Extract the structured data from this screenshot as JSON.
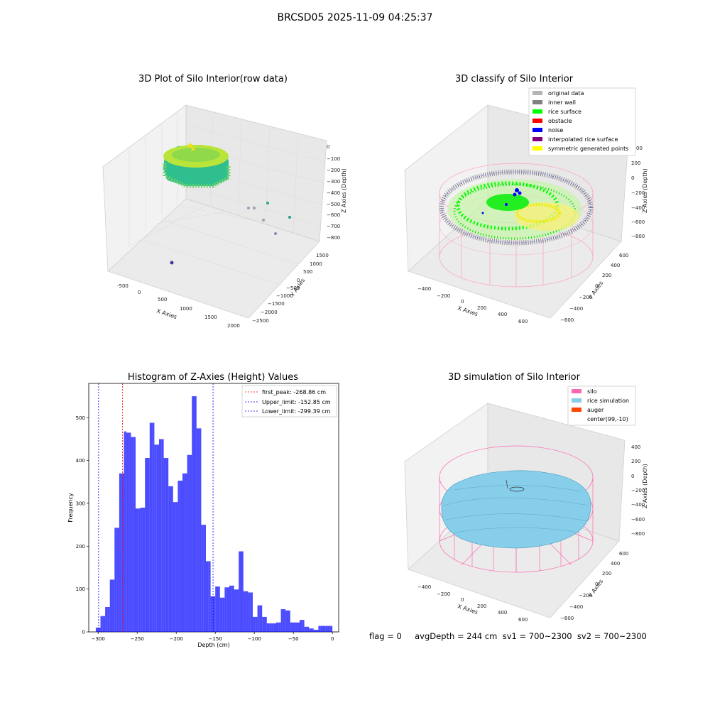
{
  "figure_title": "BRCSD05 2025-11-09 04:25:37",
  "status": {
    "line": "flag = 0     avgDepth = 244 cm  sv1 = 700~2300  sv2 = 700~2300"
  },
  "chart_data": [
    {
      "id": "raw",
      "type": "scatter3d",
      "title": "3D Plot of Silo Interior(row data)",
      "xlabel": "X Axies",
      "ylabel": "Y Axies",
      "zlabel": "Z Axies (Depth)",
      "x_ticks": [
        "-500",
        "0",
        "500",
        "1000",
        "1500",
        "2000"
      ],
      "y_ticks": [
        "1500",
        "1000",
        "500",
        "0",
        "−500",
        "−1000",
        "−1500",
        "−2000",
        "−2500"
      ],
      "z_ticks": [
        "0",
        "−100",
        "−200",
        "−300",
        "−400",
        "−500",
        "−600",
        "−700",
        "−800"
      ]
    },
    {
      "id": "classify",
      "type": "scatter3d",
      "title": "3D classify of Silo Interior",
      "xlabel": "X Axies",
      "ylabel": "Y Axies",
      "zlabel": "Z Axies (Depth)",
      "x_ticks": [
        "−400",
        "−200",
        "0",
        "200",
        "400",
        "600"
      ],
      "y_ticks": [
        "600",
        "400",
        "200",
        "0",
        "−200",
        "−400",
        "−600"
      ],
      "z_ticks": [
        "200",
        "0",
        "−200",
        "−400",
        "−600",
        "−800"
      ],
      "z_ticks_partial": [
        "00"
      ],
      "legend": [
        {
          "label": "original data",
          "color": "#b4b4b4"
        },
        {
          "label": "inner wall",
          "color": "#808080"
        },
        {
          "label": "rice surface",
          "color": "#00ff00"
        },
        {
          "label": "obstacle",
          "color": "#ff0000"
        },
        {
          "label": "noise",
          "color": "#0000ff"
        },
        {
          "label": "interpolated rice surface",
          "color": "#800080"
        },
        {
          "label": "symmetric generated points",
          "color": "#ffff00"
        }
      ]
    },
    {
      "id": "histogram",
      "type": "bar",
      "title": "Histogram of Z-Axies (Height) Values",
      "xlabel": "Depth (cm)",
      "ylabel": "Frequency",
      "xlim": [
        -312,
        8
      ],
      "ylim": [
        0,
        580
      ],
      "x_ticks": [
        -300,
        -250,
        -200,
        -150,
        -100,
        -50,
        0
      ],
      "y_ticks": [
        0,
        100,
        200,
        300,
        400,
        500
      ],
      "bin_width": 3,
      "bin_starts": [
        -303,
        -300,
        -297,
        -294,
        -291,
        -288,
        -285,
        -282,
        -279,
        -276,
        -273,
        -270,
        -267,
        -264,
        -261,
        -258,
        -255,
        -252,
        -249,
        -246,
        -243,
        -240,
        -237,
        -234,
        -231,
        -228,
        -225,
        -222,
        -219,
        -216,
        -213,
        -210,
        -207,
        -204,
        -201,
        -198,
        -195,
        -192,
        -189,
        -186,
        -183,
        -180,
        -177,
        -174,
        -171,
        -168,
        -165,
        -162,
        -159,
        -156,
        -153,
        -150,
        -147,
        -144,
        -141,
        -138,
        -135,
        -132,
        -129,
        -126,
        -123,
        -120,
        -117,
        -114,
        -111,
        -108,
        -105,
        -102,
        -99,
        -96,
        -93,
        -90,
        -87,
        -84,
        -81,
        -78,
        -75,
        -72,
        -69,
        -66,
        -63,
        -60,
        -57,
        -54,
        -51,
        -48,
        -45,
        -42,
        -39,
        -36,
        -33,
        -30,
        -27,
        -24,
        -21,
        -18,
        -15,
        -12,
        -9,
        -6,
        -3
      ],
      "values": [
        10,
        10,
        37,
        37,
        58,
        58,
        122,
        122,
        243,
        243,
        370,
        370,
        468,
        465,
        465,
        455,
        455,
        288,
        288,
        290,
        290,
        406,
        406,
        488,
        488,
        437,
        437,
        450,
        450,
        406,
        406,
        340,
        340,
        303,
        303,
        353,
        353,
        370,
        370,
        413,
        413,
        550,
        550,
        475,
        475,
        250,
        250,
        165,
        165,
        83,
        83,
        106,
        106,
        80,
        80,
        104,
        104,
        108,
        108,
        99,
        99,
        188,
        188,
        95,
        95,
        92,
        92,
        35,
        35,
        62,
        62,
        35,
        35,
        20,
        20,
        20,
        20,
        22,
        22,
        53,
        53,
        50,
        50,
        22,
        22,
        22,
        22,
        28,
        28,
        12,
        12,
        8,
        8,
        5,
        5,
        14,
        14,
        14,
        14,
        14,
        14
      ],
      "bar_color": "#0000ff",
      "lines": [
        {
          "label": "first_peak: -268.86 cm",
          "value": -268.86,
          "color": "#ff0000"
        },
        {
          "label": "Upper_limit: -152.85 cm",
          "value": -152.85,
          "color": "#0000ff"
        },
        {
          "label": "Lower_limit: -299.39 cm",
          "value": -299.39,
          "color": "#0000ff"
        }
      ],
      "legend_position": "top-right"
    },
    {
      "id": "simulation",
      "type": "surface3d",
      "title": "3D simulation of Silo Interior",
      "xlabel": "X Axies",
      "ylabel": "Y Axies",
      "zlabel": "Z Axies (Depth)",
      "x_ticks": [
        "−400",
        "−200",
        "0",
        "200",
        "400",
        "600"
      ],
      "y_ticks": [
        "600",
        "400",
        "200",
        "0",
        "−200",
        "−400",
        "−600"
      ],
      "z_ticks": [
        "400",
        "200",
        "0",
        "−200",
        "−400",
        "−600",
        "−800"
      ],
      "legend": [
        {
          "label": "silo",
          "color": "#ff69b4"
        },
        {
          "label": "rice simulation",
          "color": "#87ceeb"
        },
        {
          "label": "auger",
          "color": "#ff4500"
        },
        {
          "label": "center(99,-10)",
          "color": "#ffffff"
        }
      ]
    }
  ]
}
